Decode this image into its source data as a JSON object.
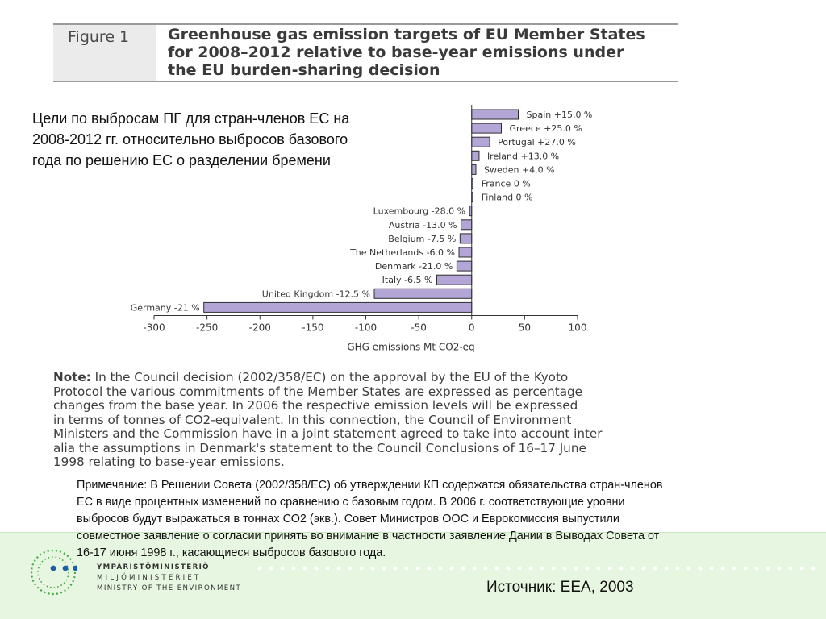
{
  "figure": {
    "label": "Figure 1",
    "title_lines": [
      "Greenhouse gas emission targets of EU Member States",
      "for 2008–2012 relative to base-year emissions under",
      "the EU burden-sharing decision"
    ]
  },
  "russian_title_lines": [
    "Цели по выбросам ПГ для стран-членов ЕС на",
    "2008-2012 гг. относительно выбросов базового",
    "года по решению ЕС о разделении бремени"
  ],
  "chart_data": {
    "type": "bar",
    "orientation": "horizontal",
    "categories": [
      "Spain +15.0 %",
      "Greece +25.0 %",
      "Portugal +27.0 %",
      "Ireland +13.0 %",
      "Sweden +4.0 %",
      "France 0 %",
      "Finland 0 %",
      "Luxembourg -28.0 %",
      "Austria -13.0 %",
      "Belgium -7.5 %",
      "The Netherlands -6.0 %",
      "Denmark -21.0 %",
      "Italy -6.5 %",
      "United Kingdom -12.5 %",
      "Germany -21 %"
    ],
    "values": [
      44,
      28,
      17,
      7,
      4,
      0,
      0,
      -2,
      -10,
      -11,
      -12,
      -14,
      -33,
      -92,
      -253
    ],
    "xlim": [
      -300,
      100
    ],
    "xticks": [
      "-300",
      "-250",
      "-200",
      "-150",
      "-100",
      "-50",
      "0",
      "50",
      "100"
    ],
    "xlabel": "GHG emissions Mt CO2-eq",
    "bar_color": "#b3a6d6",
    "bar_edge": "#2d2d2d"
  },
  "note": {
    "label": "Note:",
    "lines": [
      " In the Council decision (2002/358/EC) on the approval by the EU of the Kyoto",
      "Protocol the various commitments of the Member States are expressed as percentage",
      "changes from the base year. In 2006 the respective emission levels will be expressed",
      "in terms of tonnes of CO2-equivalent. In this connection, the Council of Environment",
      "Ministers and the Commission have in a joint statement agreed to take into account inter",
      "alia the assumptions in Denmark's statement to the Council Conclusions of 16–17 June",
      "1998 relating to base-year emissions."
    ]
  },
  "russian_note_lines": [
    "Примечание: В Решении Совета (2002/358/ЕС) об утверждении КП содержатся обязательства стран-членов",
    "ЕС в виде процентных изменений по сравнению с базовым годом. В 2006 г. соответствующие уровни",
    "выбросов будут выражаться в тоннах СО2 (экв.). Совет Министров ООС и Еврокомиссия выпустили",
    "совместное заявление о согласии принять во внимание в частности заявление Дании в Выводах Совета от",
    "16-17 июня 1998 г., касающиеся выбросов базового года."
  ],
  "source": "Источник: ЕЕА, 2003",
  "logo": {
    "line1": "YMPÄRISTÖMINISTERIÖ",
    "line2": "MILJÖMINISTERIET",
    "line3": "MINISTRY OF THE ENVIRONMENT",
    "icon": "ministry-logo-icon",
    "dot_color": "#1f5da8"
  }
}
